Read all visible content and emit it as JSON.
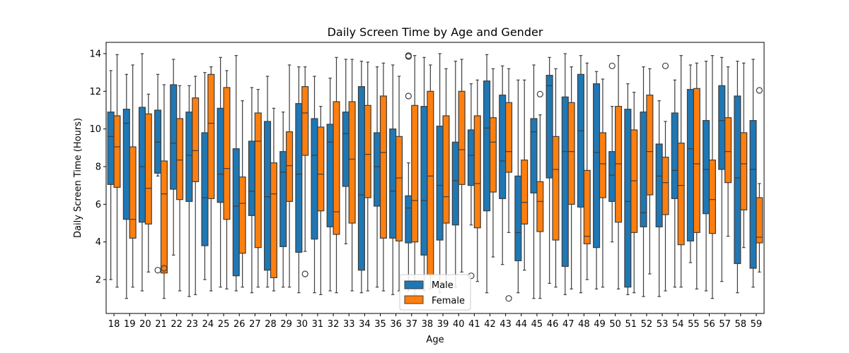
{
  "chart_data": {
    "type": "box",
    "title": "Daily Screen Time by Age and Gender",
    "xlabel": "Age",
    "ylabel": "Daily Screen Time (Hours)",
    "ylim": [
      0.2,
      14.6
    ],
    "yticks": [
      2,
      4,
      6,
      8,
      10,
      12,
      14
    ],
    "grid": false,
    "legend_position": "lower-center",
    "categories": [
      "18",
      "19",
      "20",
      "21",
      "22",
      "23",
      "24",
      "25",
      "26",
      "27",
      "28",
      "29",
      "30",
      "31",
      "32",
      "33",
      "34",
      "35",
      "36",
      "37",
      "38",
      "39",
      "40",
      "41",
      "42",
      "43",
      "44",
      "45",
      "46",
      "47",
      "48",
      "49",
      "50",
      "51",
      "52",
      "53",
      "54",
      "55",
      "56",
      "57",
      "58",
      "59"
    ],
    "series": [
      {
        "name": "Male",
        "color": "#1f77b4",
        "boxes": [
          {
            "min": 2.0,
            "q1": 7.05,
            "median": 9.6,
            "q3": 10.9,
            "max": 13.1,
            "outliers": []
          },
          {
            "min": 1.0,
            "q1": 5.2,
            "median": 10.3,
            "q3": 11.05,
            "max": 12.9,
            "outliers": []
          },
          {
            "min": 1.4,
            "q1": 5.05,
            "median": 8.0,
            "q3": 11.15,
            "max": 14.0,
            "outliers": []
          },
          {
            "min": 7.5,
            "q1": 7.65,
            "median": 9.3,
            "q3": 11.0,
            "max": 12.9,
            "outliers": [
              2.5
            ]
          },
          {
            "min": 3.3,
            "q1": 6.8,
            "median": 9.25,
            "q3": 12.35,
            "max": 13.7,
            "outliers": []
          },
          {
            "min": 1.1,
            "q1": 6.15,
            "median": 8.6,
            "q3": 10.9,
            "max": 12.3,
            "outliers": []
          },
          {
            "min": 2.0,
            "q1": 3.8,
            "median": 6.35,
            "q3": 9.8,
            "max": 13.0,
            "outliers": []
          },
          {
            "min": 1.6,
            "q1": 6.1,
            "median": 7.6,
            "q3": 11.1,
            "max": 13.8,
            "outliers": []
          },
          {
            "min": 1.4,
            "q1": 2.2,
            "median": 5.9,
            "q3": 8.95,
            "max": 13.9,
            "outliers": []
          },
          {
            "min": 1.3,
            "q1": 5.4,
            "median": 6.7,
            "q3": 9.35,
            "max": 12.2,
            "outliers": []
          },
          {
            "min": 1.6,
            "q1": 2.5,
            "median": 6.4,
            "q3": 10.4,
            "max": 12.8,
            "outliers": []
          },
          {
            "min": 1.6,
            "q1": 3.75,
            "median": 7.7,
            "q3": 8.8,
            "max": 10.9,
            "outliers": []
          },
          {
            "min": 1.3,
            "q1": 3.45,
            "median": 7.6,
            "q3": 11.35,
            "max": 13.3,
            "outliers": []
          },
          {
            "min": 1.3,
            "q1": 4.15,
            "median": 8.6,
            "q3": 10.55,
            "max": 12.8,
            "outliers": []
          },
          {
            "min": 1.4,
            "q1": 4.8,
            "median": 9.3,
            "q3": 10.25,
            "max": 12.7,
            "outliers": []
          },
          {
            "min": 3.9,
            "q1": 6.95,
            "median": 9.75,
            "q3": 10.9,
            "max": 13.7,
            "outliers": []
          },
          {
            "min": 1.3,
            "q1": 2.5,
            "median": 6.5,
            "q3": 12.25,
            "max": 13.6,
            "outliers": []
          },
          {
            "min": 1.6,
            "q1": 5.9,
            "median": 8.0,
            "q3": 9.8,
            "max": 13.3,
            "outliers": []
          },
          {
            "min": 1.2,
            "q1": 4.2,
            "median": 6.7,
            "q3": 10.0,
            "max": 13.4,
            "outliers": []
          },
          {
            "min": 1.4,
            "q1": 3.95,
            "median": 5.8,
            "q3": 6.45,
            "max": 8.2,
            "outliers": [
              11.75,
              13.85,
              13.9
            ]
          },
          {
            "min": 1.4,
            "q1": 3.3,
            "median": 6.2,
            "q3": 11.2,
            "max": 13.8,
            "outliers": []
          },
          {
            "min": 1.3,
            "q1": 4.1,
            "median": 7.0,
            "q3": 10.15,
            "max": 14.0,
            "outliers": []
          },
          {
            "min": 1.6,
            "q1": 4.9,
            "median": 7.25,
            "q3": 9.3,
            "max": 13.6,
            "outliers": []
          },
          {
            "min": 4.9,
            "q1": 7.0,
            "median": 8.6,
            "q3": 9.95,
            "max": 12.4,
            "outliers": [
              2.2
            ]
          },
          {
            "min": 1.3,
            "q1": 5.65,
            "median": 10.05,
            "q3": 12.55,
            "max": 13.95,
            "outliers": []
          },
          {
            "min": 2.8,
            "q1": 6.3,
            "median": 8.3,
            "q3": 11.8,
            "max": 13.35,
            "outliers": []
          },
          {
            "min": 1.3,
            "q1": 3.0,
            "median": 4.5,
            "q3": 7.5,
            "max": 12.6,
            "outliers": []
          },
          {
            "min": 1.0,
            "q1": 6.6,
            "median": 9.85,
            "q3": 10.55,
            "max": 13.4,
            "outliers": []
          },
          {
            "min": 1.8,
            "q1": 7.4,
            "median": 12.3,
            "q3": 12.85,
            "max": 13.8,
            "outliers": []
          },
          {
            "min": 1.2,
            "q1": 2.7,
            "median": 8.8,
            "q3": 11.7,
            "max": 14.0,
            "outliers": []
          },
          {
            "min": 1.3,
            "q1": 5.85,
            "median": 9.9,
            "q3": 12.9,
            "max": 13.9,
            "outliers": []
          },
          {
            "min": 1.5,
            "q1": 3.7,
            "median": 8.75,
            "q3": 12.4,
            "max": 13.05,
            "outliers": []
          },
          {
            "min": 4.0,
            "q1": 6.15,
            "median": 7.55,
            "q3": 8.8,
            "max": 11.2,
            "outliers": [
              13.35
            ]
          },
          {
            "min": 1.2,
            "q1": 1.6,
            "median": 6.15,
            "q3": 11.05,
            "max": 12.4,
            "outliers": []
          },
          {
            "min": 1.1,
            "q1": 4.8,
            "median": 5.55,
            "q3": 10.9,
            "max": 13.3,
            "outliers": []
          },
          {
            "min": 1.1,
            "q1": 4.8,
            "median": 7.5,
            "q3": 9.2,
            "max": 11.5,
            "outliers": []
          },
          {
            "min": 1.6,
            "q1": 6.3,
            "median": 7.8,
            "q3": 10.85,
            "max": 12.6,
            "outliers": []
          },
          {
            "min": 2.9,
            "q1": 4.05,
            "median": 8.95,
            "q3": 12.1,
            "max": 13.4,
            "outliers": []
          },
          {
            "min": 1.4,
            "q1": 5.5,
            "median": 7.85,
            "q3": 10.45,
            "max": 13.6,
            "outliers": []
          },
          {
            "min": 1.9,
            "q1": 7.85,
            "median": 10.45,
            "q3": 12.3,
            "max": 13.8,
            "outliers": []
          },
          {
            "min": 1.3,
            "q1": 2.85,
            "median": 7.4,
            "q3": 11.75,
            "max": 13.6,
            "outliers": []
          },
          {
            "min": 1.6,
            "q1": 2.6,
            "median": 7.85,
            "q3": 10.45,
            "max": 13.7,
            "outliers": []
          }
        ]
      },
      {
        "name": "Female",
        "color": "#ff7f0e",
        "boxes": [
          {
            "min": 1.6,
            "q1": 6.9,
            "median": 9.05,
            "q3": 10.7,
            "max": 13.95,
            "outliers": []
          },
          {
            "min": 1.6,
            "q1": 4.2,
            "median": 5.2,
            "q3": 9.05,
            "max": 13.4,
            "outliers": []
          },
          {
            "min": 2.4,
            "q1": 4.95,
            "median": 6.85,
            "q3": 10.8,
            "max": 11.85,
            "outliers": []
          },
          {
            "min": 1.0,
            "q1": 2.35,
            "median": 6.55,
            "q3": 8.3,
            "max": 12.35,
            "outliers": [
              2.6
            ]
          },
          {
            "min": 1.4,
            "q1": 6.25,
            "median": 8.35,
            "q3": 10.55,
            "max": 12.3,
            "outliers": []
          },
          {
            "min": 1.2,
            "q1": 7.2,
            "median": 8.85,
            "q3": 11.65,
            "max": 12.8,
            "outliers": []
          },
          {
            "min": 1.4,
            "q1": 6.3,
            "median": 10.3,
            "q3": 12.9,
            "max": 13.3,
            "outliers": []
          },
          {
            "min": 1.5,
            "q1": 5.2,
            "median": 7.9,
            "q3": 12.2,
            "max": 13.1,
            "outliers": []
          },
          {
            "min": 1.6,
            "q1": 3.4,
            "median": 6.05,
            "q3": 7.45,
            "max": 11.5,
            "outliers": []
          },
          {
            "min": 1.6,
            "q1": 3.7,
            "median": 9.35,
            "q3": 10.85,
            "max": 12.1,
            "outliers": []
          },
          {
            "min": 1.4,
            "q1": 2.1,
            "median": 6.55,
            "q3": 8.2,
            "max": 11.1,
            "outliers": []
          },
          {
            "min": 1.6,
            "q1": 6.15,
            "median": 8.05,
            "q3": 9.85,
            "max": 13.4,
            "outliers": []
          },
          {
            "min": 3.5,
            "q1": 8.6,
            "median": 10.85,
            "q3": 12.25,
            "max": 13.3,
            "outliers": [
              2.3
            ]
          },
          {
            "min": 1.2,
            "q1": 5.65,
            "median": 7.6,
            "q3": 10.1,
            "max": 11.2,
            "outliers": []
          },
          {
            "min": 1.3,
            "q1": 4.4,
            "median": 5.6,
            "q3": 11.45,
            "max": 13.8,
            "outliers": []
          },
          {
            "min": 1.4,
            "q1": 5.0,
            "median": 8.4,
            "q3": 11.45,
            "max": 13.7,
            "outliers": []
          },
          {
            "min": 1.4,
            "q1": 6.35,
            "median": 8.65,
            "q3": 11.25,
            "max": 13.55,
            "outliers": []
          },
          {
            "min": 1.4,
            "q1": 4.2,
            "median": 8.75,
            "q3": 11.75,
            "max": 13.5,
            "outliers": []
          },
          {
            "min": 1.4,
            "q1": 4.05,
            "median": 7.4,
            "q3": 9.6,
            "max": 12.8,
            "outliers": []
          },
          {
            "min": 1.2,
            "q1": 4.0,
            "median": 6.2,
            "q3": 11.25,
            "max": 13.9,
            "outliers": []
          },
          {
            "min": 1.5,
            "q1": 2.25,
            "median": 7.5,
            "q3": 12.0,
            "max": 13.4,
            "outliers": []
          },
          {
            "min": 1.8,
            "q1": 5.0,
            "median": 6.4,
            "q3": 10.7,
            "max": 13.2,
            "outliers": []
          },
          {
            "min": 2.4,
            "q1": 7.05,
            "median": 8.9,
            "q3": 12.0,
            "max": 13.7,
            "outliers": []
          },
          {
            "min": 1.9,
            "q1": 4.75,
            "median": 7.1,
            "q3": 10.7,
            "max": 12.6,
            "outliers": []
          },
          {
            "min": 3.2,
            "q1": 6.65,
            "median": 9.3,
            "q3": 10.6,
            "max": 13.2,
            "outliers": []
          },
          {
            "min": 4.5,
            "q1": 7.7,
            "median": 8.8,
            "q3": 11.4,
            "max": 13.2,
            "outliers": [
              1.0
            ]
          },
          {
            "min": 2.5,
            "q1": 4.95,
            "median": 6.1,
            "q3": 8.35,
            "max": 12.6,
            "outliers": []
          },
          {
            "min": 1.0,
            "q1": 4.55,
            "median": 6.15,
            "q3": 7.2,
            "max": 10.75,
            "outliers": [
              11.85
            ]
          },
          {
            "min": 1.6,
            "q1": 4.1,
            "median": 7.85,
            "q3": 9.6,
            "max": 13.2,
            "outliers": []
          },
          {
            "min": 1.5,
            "q1": 6.0,
            "median": 8.8,
            "q3": 11.4,
            "max": 13.3,
            "outliers": []
          },
          {
            "min": 2.0,
            "q1": 3.9,
            "median": 4.3,
            "q3": 7.8,
            "max": 13.5,
            "outliers": []
          },
          {
            "min": 1.6,
            "q1": 6.35,
            "median": 8.15,
            "q3": 9.8,
            "max": 12.65,
            "outliers": []
          },
          {
            "min": 1.5,
            "q1": 5.05,
            "median": 8.15,
            "q3": 11.2,
            "max": 13.9,
            "outliers": []
          },
          {
            "min": 1.3,
            "q1": 4.5,
            "median": 7.25,
            "q3": 9.95,
            "max": 11.95,
            "outliers": []
          },
          {
            "min": 2.3,
            "q1": 6.5,
            "median": 8.8,
            "q3": 11.8,
            "max": 13.2,
            "outliers": []
          },
          {
            "min": 1.4,
            "q1": 5.45,
            "median": 7.15,
            "q3": 8.5,
            "max": 10.4,
            "outliers": [
              13.35
            ]
          },
          {
            "min": 1.6,
            "q1": 3.85,
            "median": 7.0,
            "q3": 9.25,
            "max": 13.9,
            "outliers": []
          },
          {
            "min": 1.5,
            "q1": 4.5,
            "median": 8.15,
            "q3": 12.15,
            "max": 13.5,
            "outliers": []
          },
          {
            "min": 1.0,
            "q1": 4.45,
            "median": 6.25,
            "q3": 8.35,
            "max": 13.9,
            "outliers": []
          },
          {
            "min": 4.3,
            "q1": 7.15,
            "median": 8.8,
            "q3": 10.6,
            "max": 13.3,
            "outliers": []
          },
          {
            "min": 3.7,
            "q1": 5.7,
            "median": 8.15,
            "q3": 9.8,
            "max": 13.5,
            "outliers": []
          },
          {
            "min": 2.4,
            "q1": 3.95,
            "median": 4.25,
            "q3": 6.35,
            "max": 7.1,
            "outliers": [
              12.05
            ]
          }
        ]
      }
    ]
  }
}
